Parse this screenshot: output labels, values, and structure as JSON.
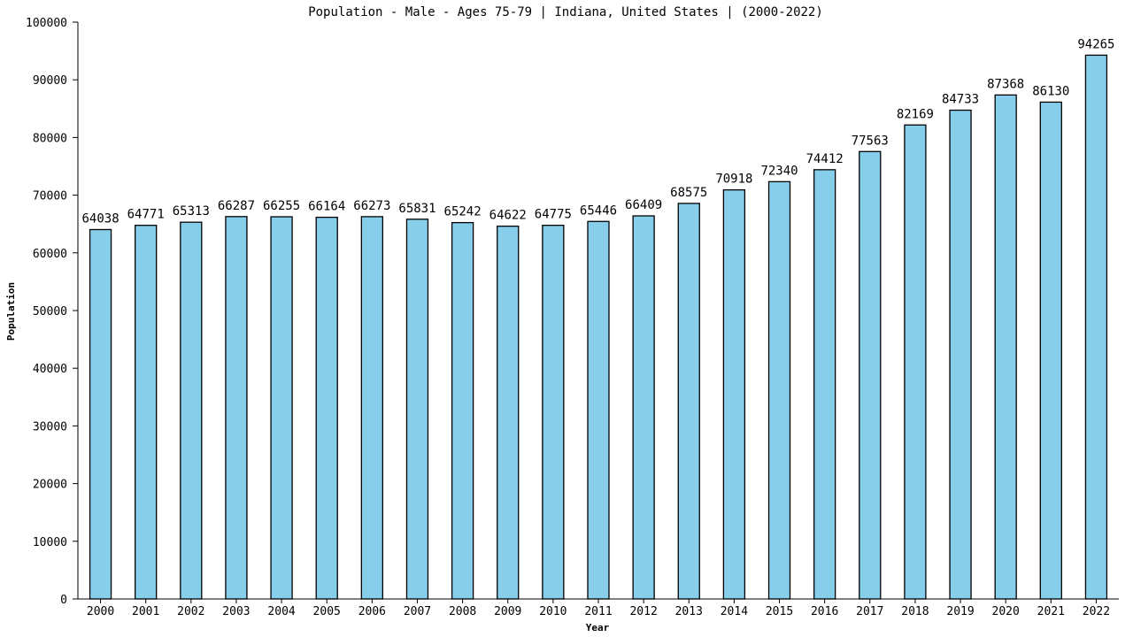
{
  "chart_data": {
    "type": "bar",
    "title": "Population - Male - Ages 75-79 | Indiana, United States |  (2000-2022)",
    "xlabel": "Year",
    "ylabel": "Population",
    "ylim": [
      0,
      100000
    ],
    "yticks": [
      0,
      10000,
      20000,
      30000,
      40000,
      50000,
      60000,
      70000,
      80000,
      90000,
      100000
    ],
    "categories": [
      "2000",
      "2001",
      "2002",
      "2003",
      "2004",
      "2005",
      "2006",
      "2007",
      "2008",
      "2009",
      "2010",
      "2011",
      "2012",
      "2013",
      "2014",
      "2015",
      "2016",
      "2017",
      "2018",
      "2019",
      "2020",
      "2021",
      "2022"
    ],
    "values": [
      64038,
      64771,
      65313,
      66287,
      66255,
      66164,
      66273,
      65831,
      65242,
      64622,
      64775,
      65446,
      66409,
      68575,
      70918,
      72340,
      74412,
      77563,
      82169,
      84733,
      87368,
      86130,
      94265
    ],
    "bar_color": "#87ceeb",
    "bar_stroke": "#000000",
    "grid": false,
    "legend": "none"
  }
}
